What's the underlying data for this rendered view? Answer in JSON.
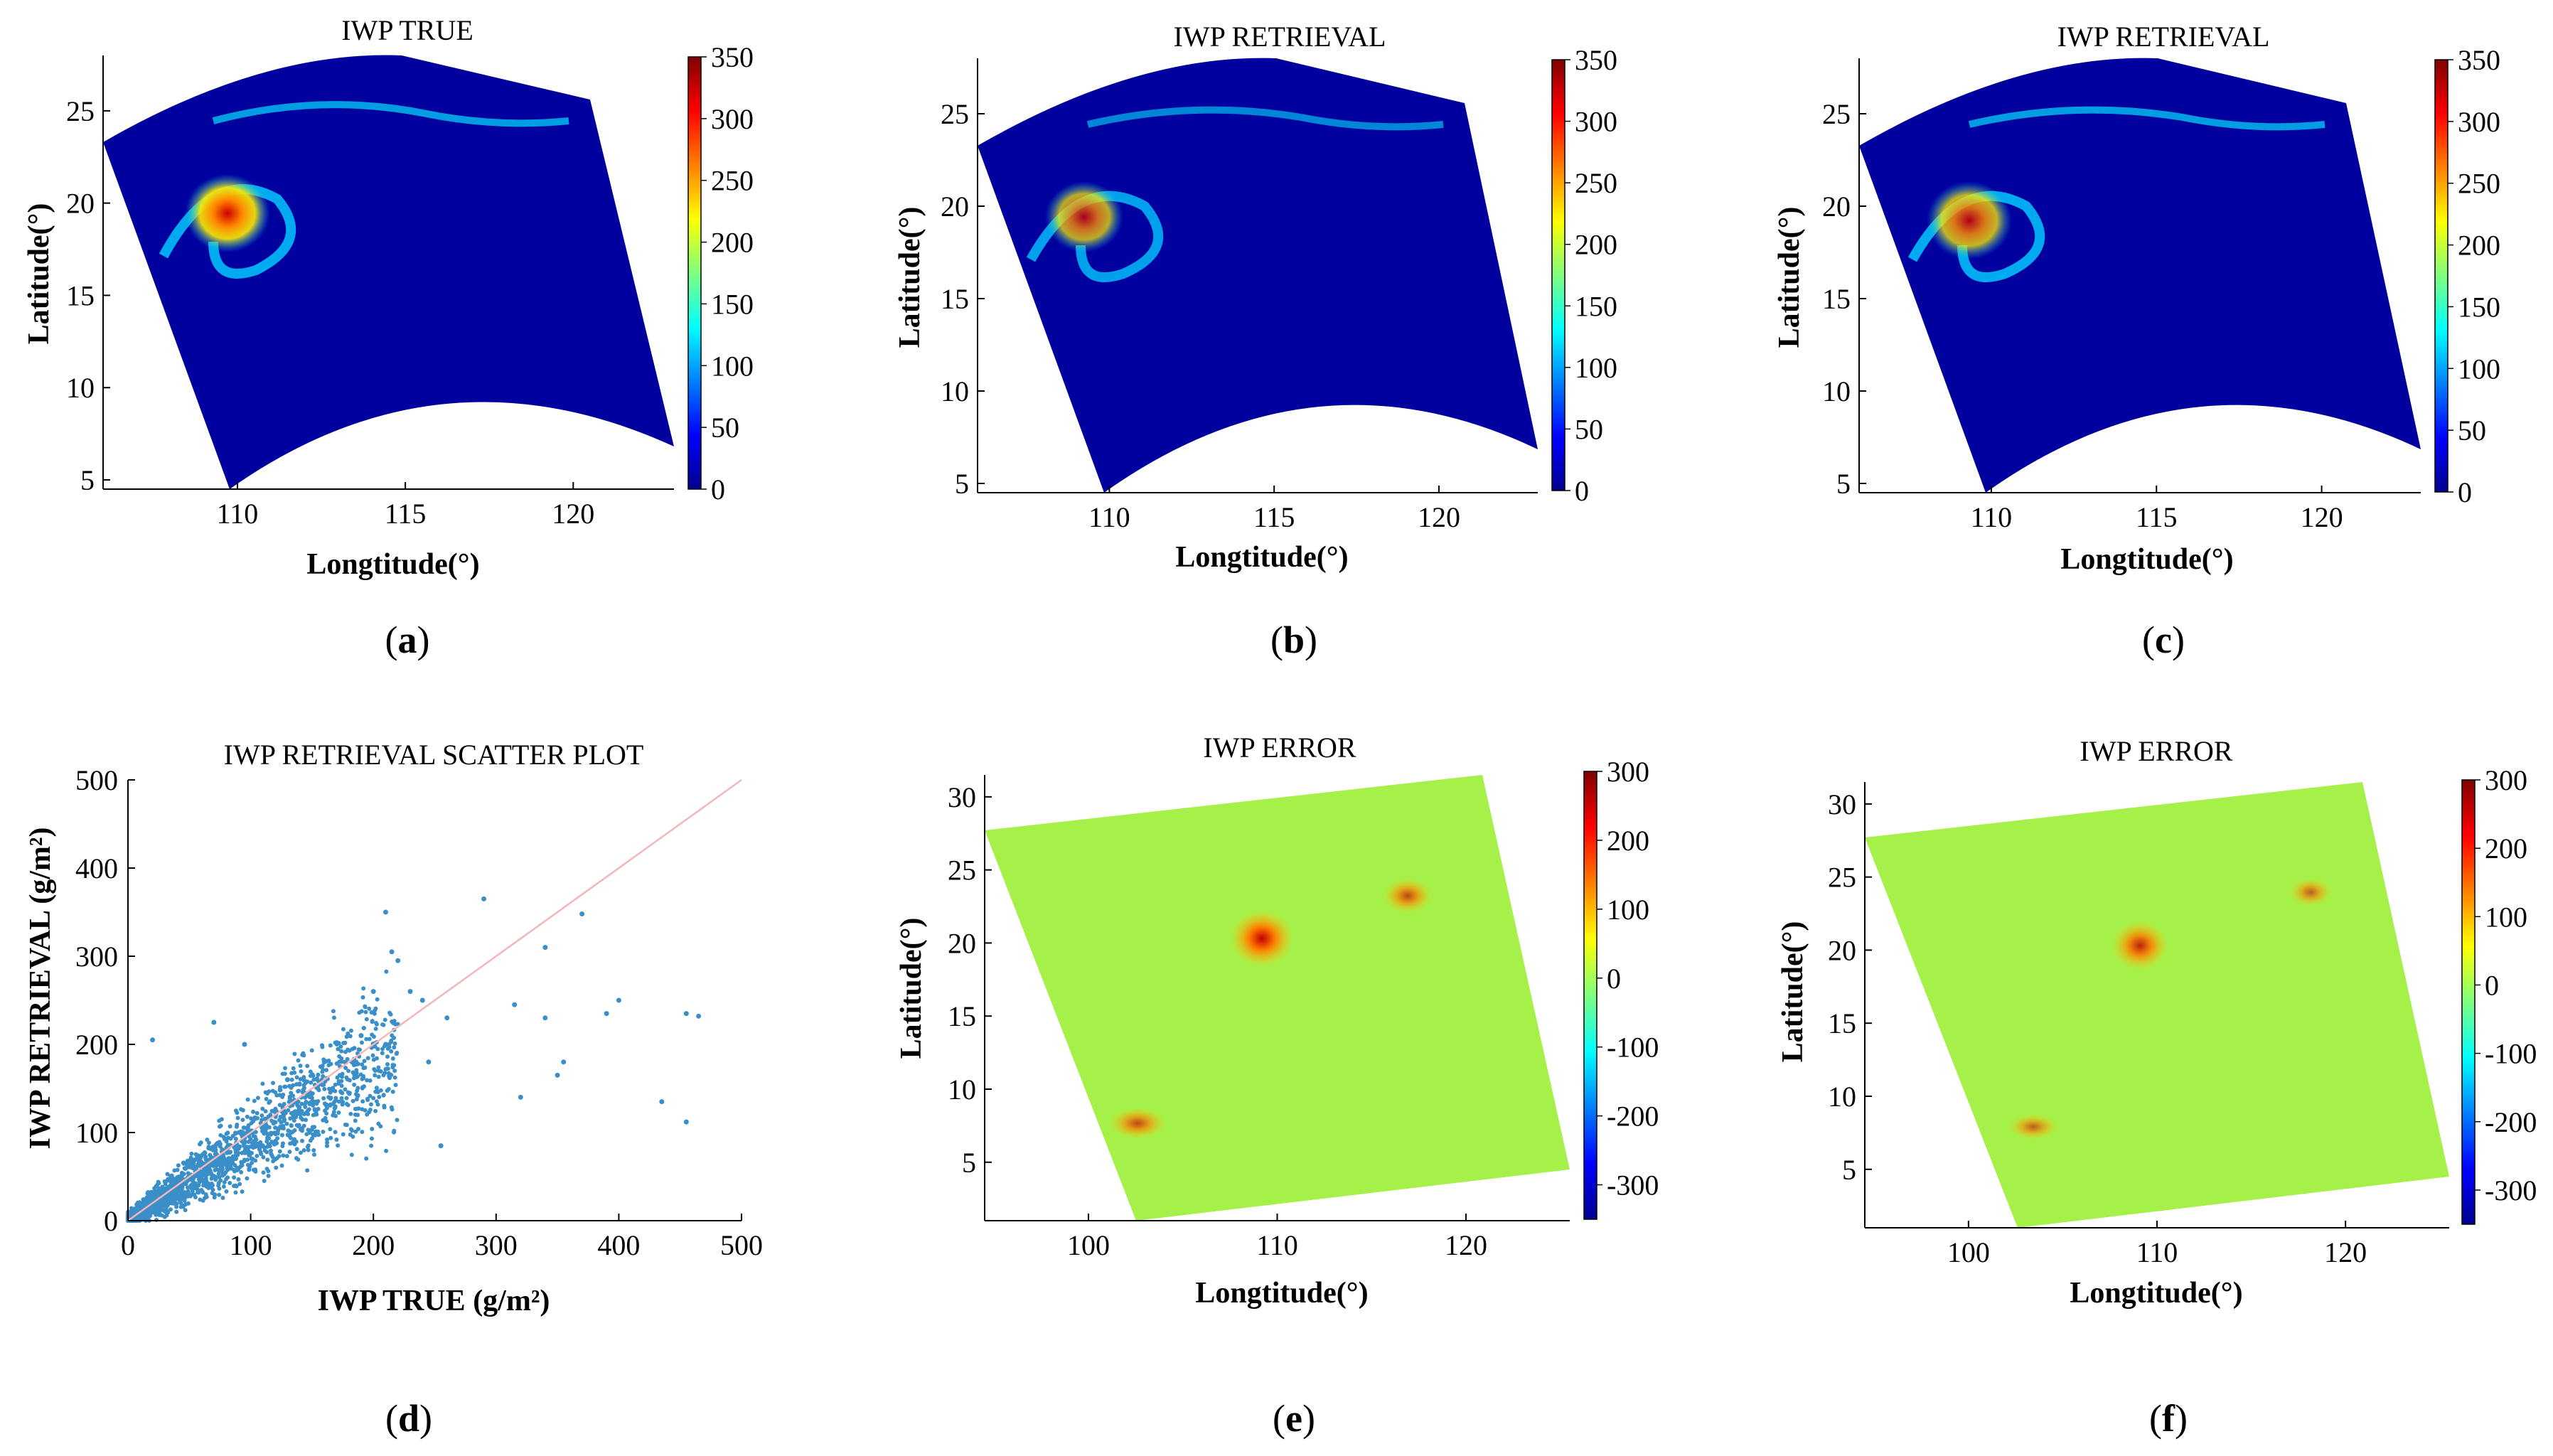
{
  "figure": {
    "panels": [
      {
        "id": "a",
        "caption_letter": "a"
      },
      {
        "id": "b",
        "caption_letter": "b"
      },
      {
        "id": "c",
        "caption_letter": "c"
      },
      {
        "id": "d",
        "caption_letter": "d"
      },
      {
        "id": "e",
        "caption_letter": "e"
      },
      {
        "id": "f",
        "caption_letter": "f"
      }
    ]
  },
  "chart_data": [
    {
      "panel": "a",
      "type": "heatmap",
      "title": "IWP TRUE",
      "xlabel": "Longtitude(°)",
      "ylabel": "Latitude(°)",
      "xticks": [
        110,
        115,
        120
      ],
      "yticks": [
        5,
        10,
        15,
        20,
        25
      ],
      "xlim": [
        106,
        123
      ],
      "ylim": [
        4.5,
        28
      ],
      "colorbar": {
        "ticks": [
          0,
          50,
          100,
          150,
          200,
          250,
          300,
          350
        ],
        "range": [
          0,
          350
        ],
        "colormap": "jet"
      },
      "features": "swath of ice water path; typhoon eye near 109.5°E, 19.5°N with max ~350 g/m2; spiral bands and scattered cloud north near 25°N"
    },
    {
      "panel": "b",
      "type": "heatmap",
      "title": "IWP RETRIEVAL",
      "xlabel": "Longtitude(°)",
      "ylabel": "Latitude(°)",
      "xticks": [
        110,
        115,
        120
      ],
      "yticks": [
        5,
        10,
        15,
        20,
        25
      ],
      "xlim": [
        106,
        123
      ],
      "ylim": [
        4.5,
        28
      ],
      "colorbar": {
        "ticks": [
          0,
          50,
          100,
          150,
          200,
          250,
          300,
          350
        ],
        "range": [
          0,
          350
        ],
        "colormap": "jet"
      }
    },
    {
      "panel": "c",
      "type": "heatmap",
      "title": "IWP RETRIEVAL",
      "xlabel": "Longtitude(°)",
      "ylabel": "Latitude(°)",
      "xticks": [
        110,
        115,
        120
      ],
      "yticks": [
        5,
        10,
        15,
        20,
        25
      ],
      "xlim": [
        106,
        123
      ],
      "ylim": [
        4.5,
        28
      ],
      "colorbar": {
        "ticks": [
          0,
          50,
          100,
          150,
          200,
          250,
          300,
          350
        ],
        "range": [
          0,
          350
        ],
        "colormap": "jet"
      }
    },
    {
      "panel": "d",
      "type": "scatter",
      "title": "IWP RETRIEVAL SCATTER PLOT",
      "xlabel": "IWP TRUE (g/m²)",
      "ylabel": "IWP RETRIEVAL (g/m²)",
      "xticks": [
        0,
        100,
        200,
        300,
        400,
        500
      ],
      "yticks": [
        0,
        100,
        200,
        300,
        400,
        500
      ],
      "xlim": [
        0,
        500
      ],
      "ylim": [
        0,
        500
      ],
      "reference_line": {
        "from": [
          0,
          0
        ],
        "to": [
          500,
          500
        ],
        "color": "#f4b6b6"
      },
      "point_color": "#3b8fc8",
      "outliers": [
        [
          210,
          350
        ],
        [
          290,
          365
        ],
        [
          370,
          348
        ],
        [
          340,
          310
        ],
        [
          215,
          305
        ],
        [
          220,
          295
        ],
        [
          400,
          250
        ],
        [
          390,
          235
        ],
        [
          340,
          230
        ],
        [
          355,
          180
        ],
        [
          350,
          165
        ],
        [
          315,
          245
        ],
        [
          320,
          140
        ],
        [
          455,
          235
        ],
        [
          465,
          232
        ],
        [
          435,
          135
        ],
        [
          455,
          112
        ],
        [
          255,
          85
        ],
        [
          230,
          260
        ],
        [
          200,
          260
        ],
        [
          240,
          250
        ],
        [
          70,
          225
        ],
        [
          20,
          205
        ],
        [
          95,
          200
        ],
        [
          260,
          230
        ],
        [
          245,
          180
        ],
        [
          210,
          200
        ],
        [
          190,
          210
        ],
        [
          130,
          160
        ],
        [
          160,
          180
        ]
      ]
    },
    {
      "panel": "e",
      "type": "heatmap",
      "title": "IWP ERROR",
      "xlabel": "Longtitude(°)",
      "ylabel": "Latitude(°)",
      "xticks": [
        100,
        110,
        120
      ],
      "yticks": [
        5,
        10,
        15,
        20,
        25,
        30
      ],
      "xlim": [
        94.5,
        125.5
      ],
      "ylim": [
        1,
        31.5
      ],
      "colorbar": {
        "ticks": [
          300,
          200,
          100,
          0,
          -100,
          -200,
          -300
        ],
        "range": [
          -350,
          300
        ],
        "colormap": "jet"
      }
    },
    {
      "panel": "f",
      "type": "heatmap",
      "title": "IWP ERROR",
      "xlabel": "Longtitude(°)",
      "ylabel": "Latitude(°)",
      "xticks": [
        100,
        110,
        120
      ],
      "yticks": [
        5,
        10,
        15,
        20,
        25,
        30
      ],
      "xlim": [
        94.5,
        125.5
      ],
      "ylim": [
        1,
        31.5
      ],
      "colorbar": {
        "ticks": [
          300,
          200,
          100,
          0,
          -100,
          -200,
          -300
        ],
        "range": [
          -350,
          300
        ],
        "colormap": "jet"
      }
    }
  ]
}
